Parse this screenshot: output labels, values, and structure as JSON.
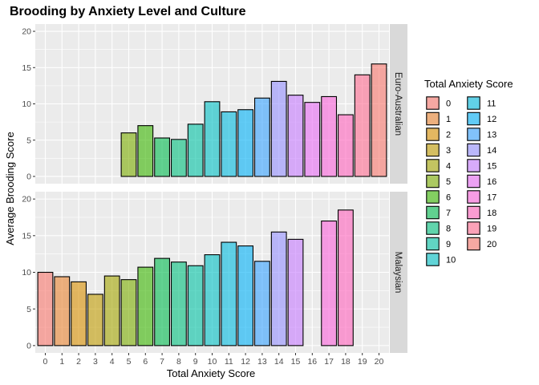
{
  "chart_data": {
    "type": "bar",
    "title": "Brooding by Anxiety Level and Culture",
    "xlabel": "Total Anxiety Score",
    "ylabel": "Average Brooding Score",
    "x_ticks": [
      "0",
      "1",
      "2",
      "3",
      "4",
      "5",
      "6",
      "7",
      "8",
      "9",
      "10",
      "11",
      "12",
      "13",
      "14",
      "15",
      "16",
      "17",
      "18",
      "19",
      "20"
    ],
    "y_ticks": [
      "0",
      "5",
      "10",
      "15",
      "20"
    ],
    "ylim": [
      0,
      21
    ],
    "grid": true,
    "legend": {
      "title": "Total Anxiety Score",
      "placement": "right",
      "items": [
        "0",
        "1",
        "2",
        "3",
        "4",
        "5",
        "6",
        "7",
        "8",
        "9",
        "10",
        "11",
        "12",
        "13",
        "14",
        "15",
        "16",
        "17",
        "18",
        "19",
        "20"
      ]
    },
    "colors": [
      "#F8766D",
      "#EA8331",
      "#D89000",
      "#C09B00",
      "#A3A500",
      "#7CAE00",
      "#39B600",
      "#00BB4E",
      "#00BF7D",
      "#00C1A3",
      "#00BFC4",
      "#00BAE0",
      "#00B0F6",
      "#35A2FF",
      "#9590FF",
      "#C77CFF",
      "#E76BF3",
      "#FA62DB",
      "#FF62BC",
      "#FF6C91",
      "#F8766D"
    ],
    "facets": [
      {
        "name": "Euro-Australian",
        "bars": [
          {
            "x": 5,
            "y": 6.0
          },
          {
            "x": 6,
            "y": 7.0
          },
          {
            "x": 7,
            "y": 5.3
          },
          {
            "x": 8,
            "y": 5.1
          },
          {
            "x": 9,
            "y": 7.2
          },
          {
            "x": 10,
            "y": 10.3
          },
          {
            "x": 11,
            "y": 8.9
          },
          {
            "x": 12,
            "y": 9.2
          },
          {
            "x": 13,
            "y": 10.8
          },
          {
            "x": 14,
            "y": 13.1
          },
          {
            "x": 15,
            "y": 11.2
          },
          {
            "x": 16,
            "y": 10.2
          },
          {
            "x": 17,
            "y": 11.0
          },
          {
            "x": 18,
            "y": 8.5
          },
          {
            "x": 19,
            "y": 14.0
          },
          {
            "x": 20,
            "y": 15.5
          }
        ]
      },
      {
        "name": "Malaysian",
        "bars": [
          {
            "x": 0,
            "y": 10.0
          },
          {
            "x": 1,
            "y": 9.4
          },
          {
            "x": 2,
            "y": 8.7
          },
          {
            "x": 3,
            "y": 7.0
          },
          {
            "x": 4,
            "y": 9.5
          },
          {
            "x": 5,
            "y": 9.0
          },
          {
            "x": 6,
            "y": 10.7
          },
          {
            "x": 7,
            "y": 11.9
          },
          {
            "x": 8,
            "y": 11.4
          },
          {
            "x": 9,
            "y": 10.9
          },
          {
            "x": 10,
            "y": 12.4
          },
          {
            "x": 11,
            "y": 14.1
          },
          {
            "x": 12,
            "y": 13.6
          },
          {
            "x": 13,
            "y": 11.5
          },
          {
            "x": 14,
            "y": 15.5
          },
          {
            "x": 15,
            "y": 14.5
          },
          {
            "x": 17,
            "y": 17.0
          },
          {
            "x": 18,
            "y": 18.5
          }
        ]
      }
    ]
  }
}
